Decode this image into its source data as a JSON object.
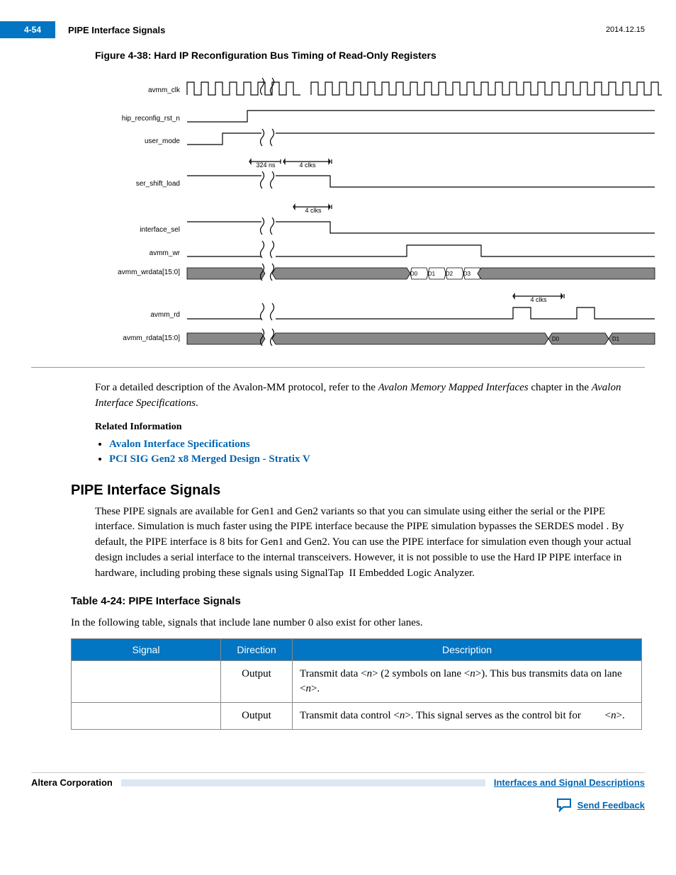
{
  "header": {
    "page_num": "4-54",
    "title": "PIPE Interface Signals",
    "date": "2014.12.15"
  },
  "figure": {
    "caption": "Figure 4-38: Hard IP Reconfiguration Bus Timing of Read-Only Registers",
    "signals": [
      "avmm_clk",
      "hip_reconfig_rst_n",
      "user_mode",
      "ser_shift_load",
      "interface_sel",
      "avmm_wr",
      "avmm_wrdata[15:0]",
      "avmm_rd",
      "avmm_rdata[15:0]"
    ],
    "annotations": {
      "delay_ns": "324 ns",
      "clks4": "4 clks"
    },
    "wrdata_cells": [
      "D0",
      "D1",
      "D2",
      "D3"
    ],
    "rdata_cells": [
      "D0",
      "D1"
    ],
    "colors": {
      "bus_fill": "#888888",
      "line": "#000000"
    },
    "label_fontsize": 10
  },
  "paragraphs": {
    "protocol_desc_pre": "For a detailed description of the Avalon-MM protocol, refer to the ",
    "protocol_desc_em1": "Avalon Memory Mapped Interfaces",
    "protocol_desc_mid": " chapter in the ",
    "protocol_desc_em2": "Avalon Interface Specifications",
    "protocol_desc_post": ".",
    "related_info": "Related Information",
    "pipe_body": "These PIPE signals are available for Gen1 and Gen2 variants so that you can simulate using either the serial or the PIPE interface. Simulation is much faster using the PIPE interface because the PIPE simulation bypasses the SERDES model . By default, the PIPE interface is 8 bits for Gen1 and Gen2. You can use the PIPE interface for simulation even though your actual design includes a serial interface to the internal transceivers. However, it is not possible to use the Hard IP PIPE interface in hardware, including probing these signals using SignalTap  II Embedded Logic Analyzer.",
    "table_intro": "In the following table, signals that include lane number 0 also exist for other lanes."
  },
  "links": [
    "Avalon Interface Specifications",
    "PCI SIG Gen2 x8 Merged Design - Stratix V"
  ],
  "section_heading": "PIPE Interface Signals",
  "table": {
    "caption": "Table 4-24: PIPE Interface Signals",
    "headers": [
      "Signal",
      "Direction",
      "Description"
    ],
    "rows": [
      {
        "signal": "",
        "direction": "Output",
        "desc_parts": [
          "Transmit data <",
          "n",
          "> (2 symbols on lane <",
          "n",
          ">). This bus transmits data on lane <",
          "n",
          ">."
        ]
      },
      {
        "signal": "",
        "direction": "Output",
        "desc_parts": [
          "Transmit data control <",
          "n",
          ">. This signal serves as the control bit for         <",
          "n",
          ">."
        ]
      }
    ],
    "header_bg": "#0275c3"
  },
  "footer": {
    "left": "Altera Corporation",
    "right": "Interfaces and Signal Descriptions",
    "feedback": "Send Feedback"
  }
}
